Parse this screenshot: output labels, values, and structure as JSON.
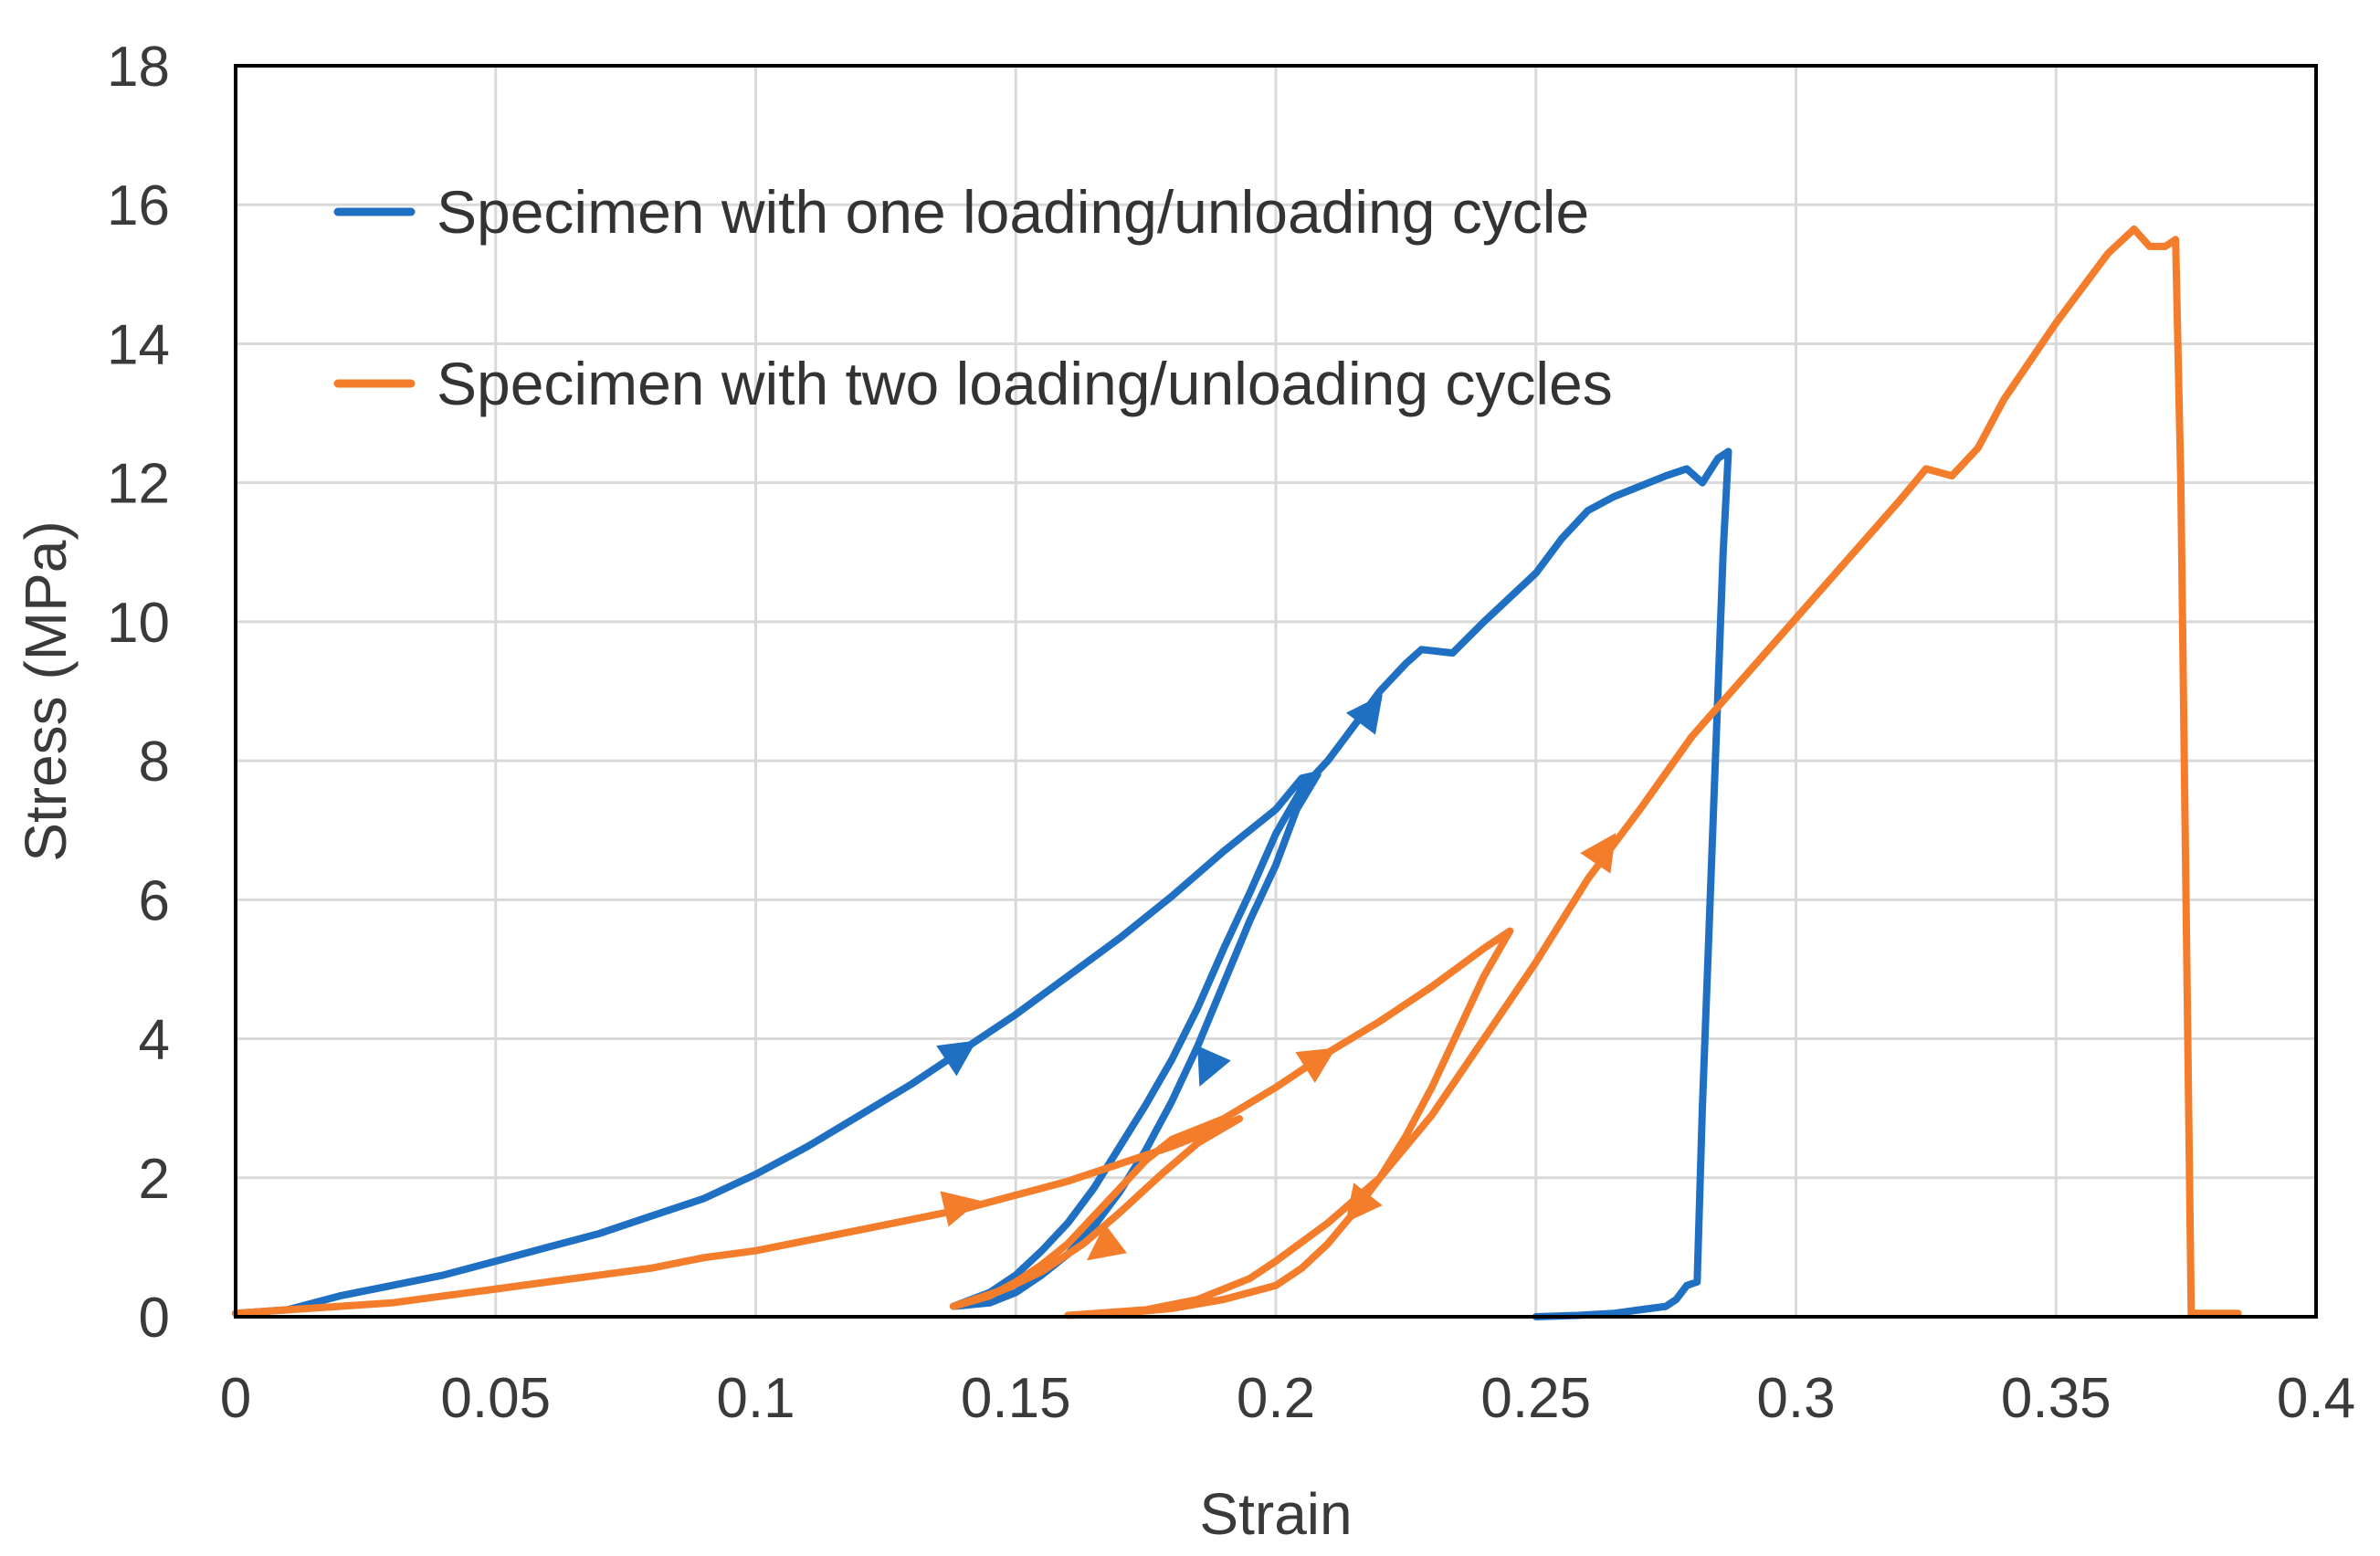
{
  "chart_data": {
    "type": "line",
    "title": "",
    "xlabel": "Strain",
    "ylabel": "Stress (MPa)",
    "xlim": [
      0,
      0.4
    ],
    "ylim": [
      0,
      18
    ],
    "grid": true,
    "legend_position": "top-left",
    "x_ticks": [
      {
        "value": 0,
        "label": "0"
      },
      {
        "value": 0.05,
        "label": "0.05"
      },
      {
        "value": 0.1,
        "label": "0.1"
      },
      {
        "value": 0.15,
        "label": "0.15"
      },
      {
        "value": 0.2,
        "label": "0.2"
      },
      {
        "value": 0.25,
        "label": "0.25"
      },
      {
        "value": 0.3,
        "label": "0.3"
      },
      {
        "value": 0.35,
        "label": "0.35"
      },
      {
        "value": 0.4,
        "label": "0.4"
      }
    ],
    "y_ticks": [
      {
        "value": 0,
        "label": "0"
      },
      {
        "value": 2,
        "label": "2"
      },
      {
        "value": 4,
        "label": "4"
      },
      {
        "value": 6,
        "label": "6"
      },
      {
        "value": 8,
        "label": "8"
      },
      {
        "value": 10,
        "label": "10"
      },
      {
        "value": 12,
        "label": "12"
      },
      {
        "value": 14,
        "label": "14"
      },
      {
        "value": 16,
        "label": "16"
      },
      {
        "value": 18,
        "label": "18"
      }
    ],
    "series": [
      {
        "name": "Specimen with one loading/unloading cycle",
        "color": "#1f6fc2",
        "points": [
          [
            0,
            0.05
          ],
          [
            0.01,
            0.1
          ],
          [
            0.02,
            0.3
          ],
          [
            0.03,
            0.45
          ],
          [
            0.04,
            0.6
          ],
          [
            0.05,
            0.8
          ],
          [
            0.06,
            1.0
          ],
          [
            0.07,
            1.2
          ],
          [
            0.08,
            1.45
          ],
          [
            0.09,
            1.7
          ],
          [
            0.1,
            2.05
          ],
          [
            0.11,
            2.45
          ],
          [
            0.12,
            2.9
          ],
          [
            0.13,
            3.35
          ],
          [
            0.14,
            3.85
          ],
          [
            0.15,
            4.35
          ],
          [
            0.16,
            4.9
          ],
          [
            0.17,
            5.45
          ],
          [
            0.18,
            6.05
          ],
          [
            0.19,
            6.7
          ],
          [
            0.2,
            7.3
          ],
          [
            0.205,
            7.75
          ],
          [
            0.208,
            7.8
          ],
          [
            0.204,
            7.3
          ],
          [
            0.2,
            6.5
          ],
          [
            0.195,
            5.7
          ],
          [
            0.19,
            4.8
          ],
          [
            0.185,
            3.9
          ],
          [
            0.18,
            3.1
          ],
          [
            0.175,
            2.4
          ],
          [
            0.17,
            1.8
          ],
          [
            0.165,
            1.3
          ],
          [
            0.16,
            0.9
          ],
          [
            0.155,
            0.6
          ],
          [
            0.15,
            0.35
          ],
          [
            0.145,
            0.2
          ],
          [
            0.138,
            0.15
          ],
          [
            0.145,
            0.35
          ],
          [
            0.15,
            0.6
          ],
          [
            0.155,
            0.95
          ],
          [
            0.16,
            1.35
          ],
          [
            0.165,
            1.85
          ],
          [
            0.17,
            2.45
          ],
          [
            0.175,
            3.05
          ],
          [
            0.18,
            3.7
          ],
          [
            0.185,
            4.45
          ],
          [
            0.19,
            5.3
          ],
          [
            0.195,
            6.1
          ],
          [
            0.2,
            6.95
          ],
          [
            0.205,
            7.6
          ],
          [
            0.21,
            8.0
          ],
          [
            0.215,
            8.5
          ],
          [
            0.22,
            9.0
          ],
          [
            0.225,
            9.4
          ],
          [
            0.228,
            9.6
          ],
          [
            0.234,
            9.55
          ],
          [
            0.24,
            10.0
          ],
          [
            0.25,
            10.7
          ],
          [
            0.255,
            11.2
          ],
          [
            0.26,
            11.6
          ],
          [
            0.265,
            11.8
          ],
          [
            0.27,
            11.95
          ],
          [
            0.275,
            12.1
          ],
          [
            0.279,
            12.2
          ],
          [
            0.282,
            12.0
          ],
          [
            0.285,
            12.35
          ],
          [
            0.287,
            12.45
          ],
          [
            0.286,
            11.0
          ],
          [
            0.284,
            7.0
          ],
          [
            0.282,
            3.0
          ],
          [
            0.281,
            0.5
          ],
          [
            0.279,
            0.45
          ],
          [
            0.277,
            0.25
          ],
          [
            0.275,
            0.15
          ],
          [
            0.27,
            0.1
          ],
          [
            0.265,
            0.05
          ],
          [
            0.258,
            0.02
          ],
          [
            0.25,
            0.0
          ]
        ]
      },
      {
        "name": "Specimen with two loading/unloading cycles",
        "color": "#f47d2c",
        "points": [
          [
            0,
            0.05
          ],
          [
            0.01,
            0.1
          ],
          [
            0.02,
            0.15
          ],
          [
            0.03,
            0.2
          ],
          [
            0.04,
            0.3
          ],
          [
            0.05,
            0.4
          ],
          [
            0.06,
            0.5
          ],
          [
            0.07,
            0.6
          ],
          [
            0.08,
            0.7
          ],
          [
            0.09,
            0.85
          ],
          [
            0.1,
            0.95
          ],
          [
            0.11,
            1.1
          ],
          [
            0.12,
            1.25
          ],
          [
            0.13,
            1.4
          ],
          [
            0.14,
            1.55
          ],
          [
            0.15,
            1.75
          ],
          [
            0.16,
            1.95
          ],
          [
            0.17,
            2.2
          ],
          [
            0.18,
            2.45
          ],
          [
            0.185,
            2.6
          ],
          [
            0.19,
            2.75
          ],
          [
            0.193,
            2.85
          ],
          [
            0.185,
            2.5
          ],
          [
            0.178,
            2.05
          ],
          [
            0.17,
            1.5
          ],
          [
            0.163,
            1.05
          ],
          [
            0.155,
            0.65
          ],
          [
            0.148,
            0.4
          ],
          [
            0.142,
            0.25
          ],
          [
            0.138,
            0.15
          ],
          [
            0.145,
            0.3
          ],
          [
            0.15,
            0.5
          ],
          [
            0.155,
            0.75
          ],
          [
            0.16,
            1.05
          ],
          [
            0.165,
            1.45
          ],
          [
            0.17,
            1.85
          ],
          [
            0.175,
            2.25
          ],
          [
            0.18,
            2.55
          ],
          [
            0.19,
            2.85
          ],
          [
            0.2,
            3.3
          ],
          [
            0.21,
            3.8
          ],
          [
            0.22,
            4.25
          ],
          [
            0.23,
            4.75
          ],
          [
            0.24,
            5.3
          ],
          [
            0.245,
            5.55
          ],
          [
            0.24,
            4.9
          ],
          [
            0.235,
            4.1
          ],
          [
            0.23,
            3.3
          ],
          [
            0.225,
            2.6
          ],
          [
            0.22,
            2.0
          ],
          [
            0.215,
            1.5
          ],
          [
            0.21,
            1.05
          ],
          [
            0.205,
            0.7
          ],
          [
            0.2,
            0.45
          ],
          [
            0.19,
            0.25
          ],
          [
            0.18,
            0.12
          ],
          [
            0.17,
            0.05
          ],
          [
            0.16,
            0.02
          ],
          [
            0.175,
            0.1
          ],
          [
            0.185,
            0.25
          ],
          [
            0.195,
            0.55
          ],
          [
            0.2,
            0.8
          ],
          [
            0.21,
            1.35
          ],
          [
            0.22,
            2.0
          ],
          [
            0.23,
            2.9
          ],
          [
            0.24,
            4.0
          ],
          [
            0.25,
            5.1
          ],
          [
            0.26,
            6.3
          ],
          [
            0.27,
            7.3
          ],
          [
            0.28,
            8.35
          ],
          [
            0.29,
            9.2
          ],
          [
            0.3,
            10.05
          ],
          [
            0.31,
            10.9
          ],
          [
            0.32,
            11.75
          ],
          [
            0.325,
            12.2
          ],
          [
            0.33,
            12.1
          ],
          [
            0.335,
            12.5
          ],
          [
            0.34,
            13.2
          ],
          [
            0.35,
            14.3
          ],
          [
            0.36,
            15.3
          ],
          [
            0.365,
            15.65
          ],
          [
            0.368,
            15.4
          ],
          [
            0.371,
            15.4
          ],
          [
            0.373,
            15.5
          ],
          [
            0.374,
            12.0
          ],
          [
            0.375,
            6.0
          ],
          [
            0.376,
            0.05
          ],
          [
            0.38,
            0.05
          ],
          [
            0.385,
            0.05
          ]
        ]
      }
    ],
    "annotations": [
      {
        "series": 0,
        "x": 0.139,
        "y": 3.8,
        "direction": "loading"
      },
      {
        "series": 0,
        "x": 0.187,
        "y": 3.6,
        "direction": "unloading"
      },
      {
        "series": 0,
        "x": 0.218,
        "y": 8.7,
        "direction": "reloading"
      },
      {
        "series": 1,
        "x": 0.139,
        "y": 1.6,
        "direction": "loading"
      },
      {
        "series": 1,
        "x": 0.167,
        "y": 1.0,
        "direction": "unloading"
      },
      {
        "series": 1,
        "x": 0.208,
        "y": 3.7,
        "direction": "reloading"
      },
      {
        "series": 1,
        "x": 0.216,
        "y": 1.6,
        "direction": "unloading"
      },
      {
        "series": 1,
        "x": 0.263,
        "y": 6.7,
        "direction": "reloading"
      }
    ]
  }
}
